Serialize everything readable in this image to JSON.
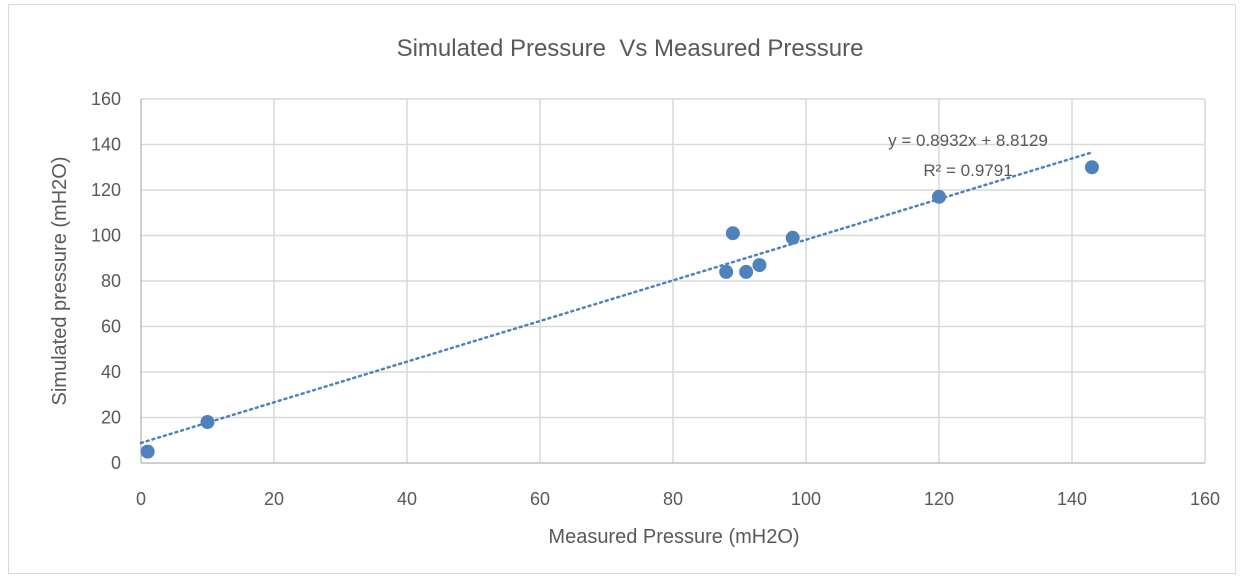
{
  "chart_data": {
    "type": "scatter",
    "title": "Simulated Pressure  Vs Measured Pressure",
    "xlabel": "Measured Pressure (mH2O)",
    "ylabel": "Simulated pressure (mH2O)",
    "xlim": [
      0,
      160
    ],
    "ylim": [
      0,
      160
    ],
    "x_ticks": [
      "0",
      "20",
      "40",
      "60",
      "80",
      "100",
      "120",
      "140",
      "160"
    ],
    "y_ticks": [
      "0",
      "20",
      "40",
      "60",
      "80",
      "100",
      "120",
      "140",
      "160"
    ],
    "grid": true,
    "legend": "none",
    "series": [
      {
        "points": [
          {
            "x": 1,
            "y": 5
          },
          {
            "x": 10,
            "y": 18
          },
          {
            "x": 88,
            "y": 84
          },
          {
            "x": 89,
            "y": 101
          },
          {
            "x": 91,
            "y": 84
          },
          {
            "x": 93,
            "y": 87
          },
          {
            "x": 98,
            "y": 99
          },
          {
            "x": 120,
            "y": 117
          },
          {
            "x": 143,
            "y": 130
          }
        ],
        "color": "#4f81bd"
      }
    ],
    "trendline": {
      "type": "linear",
      "slope": 0.8932,
      "intercept": 8.8129,
      "x_range": [
        0,
        143
      ],
      "style": "dotted",
      "color": "#4f81bd",
      "equation_label": "y = 0.8932x + 8.8129",
      "r2_label": "R² = 0.9791"
    }
  }
}
